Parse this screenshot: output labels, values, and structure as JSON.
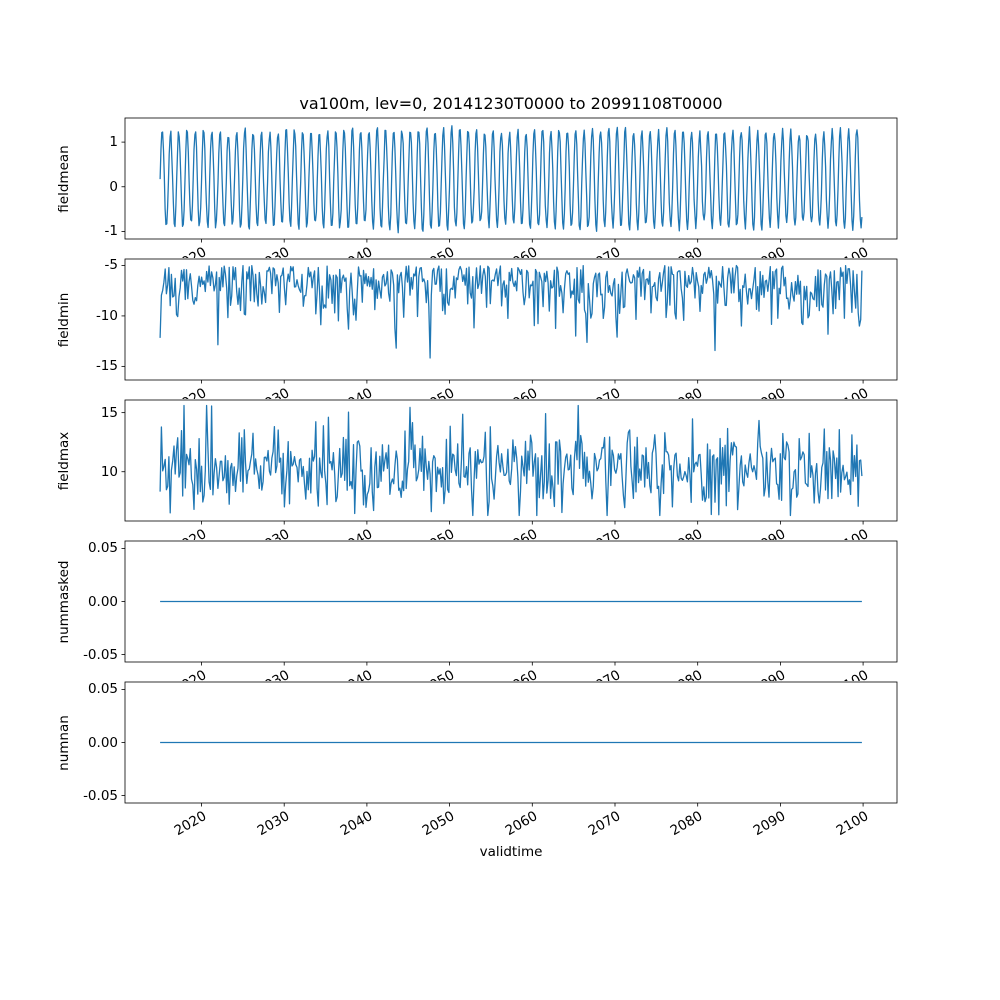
{
  "figure": {
    "title": "va100m, lev=0, 20141230T0000 to 20991108T0000",
    "xlabel": "validtime",
    "background_color": "#ffffff",
    "line_color": "#1f77b4",
    "frame_color": "#000000",
    "x_axis": {
      "ticks": [
        2020,
        2030,
        2040,
        2050,
        2060,
        2070,
        2080,
        2090,
        2100
      ],
      "tick_labels": [
        "2020",
        "2030",
        "2040",
        "2050",
        "2060",
        "2070",
        "2080",
        "2090",
        "2100"
      ],
      "tick_rotation_deg": 30,
      "xlim": [
        2010.75,
        2104.1
      ],
      "data_domain": [
        2015.0,
        2099.86
      ]
    }
  },
  "chart_data": [
    {
      "type": "line",
      "ylabel": "fieldmean",
      "ylim": [
        -1.17,
        1.54
      ],
      "yticks": [
        -1,
        0,
        1
      ],
      "ytick_labels": [
        "-1",
        "0",
        "1"
      ],
      "approx_range": [
        -1.05,
        1.42
      ],
      "description": "dense yearly oscillation of field mean between about -1 and 1.4",
      "gen": {
        "kind": "annual_osc",
        "n": 850,
        "seed": 42,
        "base": 0.18,
        "amp": 1.08,
        "amp_jitter": 0.12,
        "cycles_per_year": 1,
        "noise": 0.09,
        "clip": [
          -1.05,
          1.42
        ]
      }
    },
    {
      "type": "line",
      "ylabel": "fieldmin",
      "ylim": [
        -16.35,
        -4.36
      ],
      "yticks": [
        -15,
        -10,
        -5
      ],
      "ytick_labels": [
        "-15",
        "-10",
        "-5"
      ],
      "approx_range": [
        -15.8,
        -4.9
      ],
      "description": "noisy field minimum hugging -5 with downward spikes to about -16",
      "gen": {
        "kind": "half_noise",
        "n": 560,
        "seed": 7,
        "edge": -5.0,
        "dir": -1,
        "scale": 2.6,
        "spike_prob": 0.03,
        "spike_scale": 5,
        "clip": [
          -15.8,
          -4.9
        ]
      }
    },
    {
      "type": "line",
      "ylabel": "fieldmax",
      "ylim": [
        5.83,
        16.07
      ],
      "yticks": [
        10,
        15
      ],
      "ytick_labels": [
        "10",
        "15"
      ],
      "approx_range": [
        6.3,
        15.6
      ],
      "description": "noisy field maximum centered near 10 with spikes up to about 15.5",
      "gen": {
        "kind": "gauss_noise",
        "n": 560,
        "seed": 19,
        "center": 10.2,
        "sigma": 1.7,
        "spike_prob": 0.04,
        "spike_scale": 3.2,
        "clip": [
          6.3,
          15.6
        ]
      }
    },
    {
      "type": "line",
      "ylabel": "nummasked",
      "ylim": [
        -0.057,
        0.057
      ],
      "yticks": [
        -0.05,
        0,
        0.05
      ],
      "ytick_labels": [
        "-0.05",
        "0.00",
        "0.05"
      ],
      "constant_value": 0,
      "description": "constant zero line",
      "gen": {
        "kind": "const",
        "n": 2,
        "value": 0
      }
    },
    {
      "type": "line",
      "ylabel": "numnan",
      "ylim": [
        -0.057,
        0.057
      ],
      "yticks": [
        -0.05,
        0,
        0.05
      ],
      "ytick_labels": [
        "-0.05",
        "0.00",
        "0.05"
      ],
      "constant_value": 0,
      "description": "constant zero line",
      "gen": {
        "kind": "const",
        "n": 2,
        "value": 0
      }
    }
  ]
}
